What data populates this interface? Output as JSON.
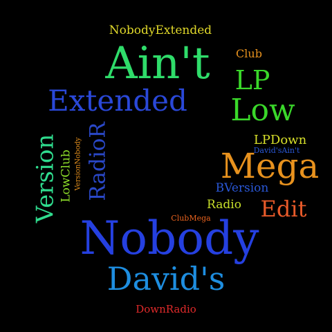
{
  "words": [
    {
      "id": "nobody",
      "text": "Nobody",
      "color": "#2540e0"
    },
    {
      "id": "aint",
      "text": "Ain't",
      "color": "#2fdc6a"
    },
    {
      "id": "davids",
      "text": "David's",
      "color": "#1e8ee0"
    },
    {
      "id": "mega",
      "text": "Mega",
      "color": "#e8921e"
    },
    {
      "id": "extended",
      "text": "Extended",
      "color": "#2a48d8"
    },
    {
      "id": "low",
      "text": "Low",
      "color": "#3ad82a"
    },
    {
      "id": "version",
      "text": "Version",
      "color": "#2fdc8e"
    },
    {
      "id": "radior",
      "text": "RadioR",
      "color": "#2a48c8"
    },
    {
      "id": "lp",
      "text": "LP",
      "color": "#3ad82a"
    },
    {
      "id": "edit",
      "text": "Edit",
      "color": "#e85a2a"
    },
    {
      "id": "nobodyextended",
      "text": "NobodyExtended",
      "color": "#e0d82a"
    },
    {
      "id": "lpdown",
      "text": "LPDown",
      "color": "#d8e02a"
    },
    {
      "id": "bversion",
      "text": "BVersion",
      "color": "#2a58d8"
    },
    {
      "id": "radio",
      "text": "Radio",
      "color": "#c8e02a"
    },
    {
      "id": "lowclub",
      "text": "LowClub",
      "color": "#8ee02a"
    },
    {
      "id": "club",
      "text": "Club",
      "color": "#e8921e"
    },
    {
      "id": "downradio",
      "text": "DownRadio",
      "color": "#e02a2a"
    },
    {
      "id": "versionnobody",
      "text": "VersionNobody",
      "color": "#e8921e"
    },
    {
      "id": "davidsaint",
      "text": "David'sAin't",
      "color": "#2a58d8"
    },
    {
      "id": "clubmega",
      "text": "ClubMega",
      "color": "#e8621e"
    }
  ]
}
